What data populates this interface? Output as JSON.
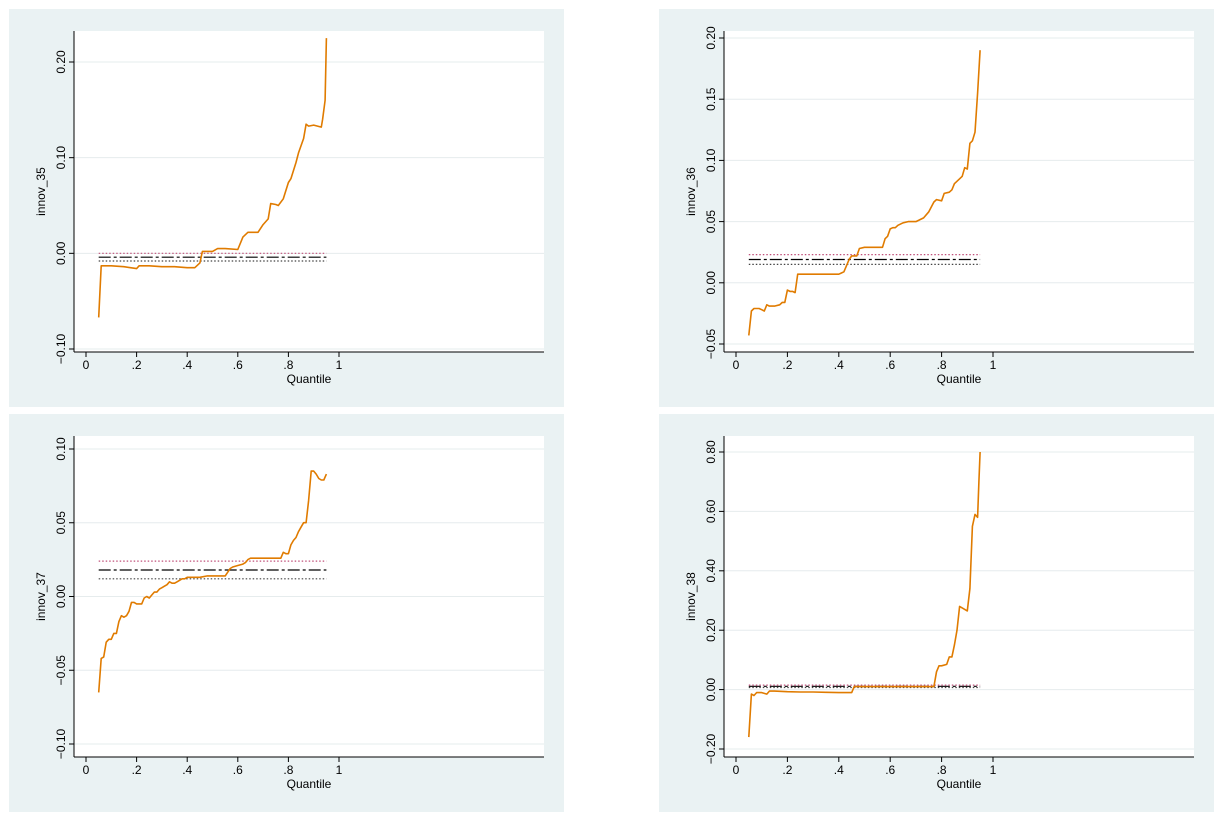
{
  "chart_data": [
    {
      "type": "line",
      "xlabel": "Quantile",
      "ylabel": "innov_35",
      "xlim": [
        0,
        1
      ],
      "ylim": [
        -0.1,
        0.2
      ],
      "xticks": [
        0,
        0.2,
        0.4,
        0.6,
        0.8,
        1
      ],
      "xtick_labels": [
        "0",
        ".2",
        ".4",
        ".6",
        ".8",
        "1"
      ],
      "yticks": [
        -0.1,
        0,
        0.1,
        0.2
      ],
      "ytick_labels": [
        "−0.10",
        "0.00",
        "0.10",
        "0.20"
      ],
      "grid": true,
      "series": [
        {
          "role": "quantile-curve",
          "color": "#e07b00",
          "x": [
            0.05,
            0.06,
            0.1,
            0.15,
            0.2,
            0.21,
            0.25,
            0.3,
            0.35,
            0.4,
            0.43,
            0.45,
            0.46,
            0.5,
            0.52,
            0.55,
            0.6,
            0.62,
            0.64,
            0.68,
            0.7,
            0.72,
            0.73,
            0.75,
            0.76,
            0.78,
            0.8,
            0.81,
            0.83,
            0.84,
            0.86,
            0.87,
            0.88,
            0.9,
            0.93,
            0.935,
            0.945,
            0.95
          ],
          "y": [
            -0.067,
            -0.013,
            -0.013,
            -0.014,
            -0.016,
            -0.013,
            -0.013,
            -0.014,
            -0.014,
            -0.015,
            -0.015,
            -0.01,
            0.002,
            0.002,
            0.005,
            0.005,
            0.004,
            0.017,
            0.022,
            0.022,
            0.03,
            0.036,
            0.052,
            0.051,
            0.05,
            0.057,
            0.074,
            0.078,
            0.095,
            0.105,
            0.12,
            0.135,
            0.133,
            0.134,
            0.132,
            0.14,
            0.16,
            0.225
          ]
        },
        {
          "role": "ols-estimate",
          "color": "#000000",
          "style": "long-dash",
          "x": [
            0.05,
            0.95
          ],
          "y": [
            -0.004,
            -0.004
          ]
        },
        {
          "role": "upper-ci",
          "color": "#c0507a",
          "style": "dotted",
          "x": [
            0.05,
            0.95
          ],
          "y": [
            0.0,
            0.0
          ]
        },
        {
          "role": "lower-ci",
          "color": "#444444",
          "style": "dotted",
          "x": [
            0.05,
            0.95
          ],
          "y": [
            -0.008,
            -0.008
          ]
        }
      ]
    },
    {
      "type": "line",
      "xlabel": "Quantile",
      "ylabel": "innov_36",
      "xlim": [
        0,
        1
      ],
      "ylim": [
        -0.05,
        0.2
      ],
      "xticks": [
        0,
        0.2,
        0.4,
        0.6,
        0.8,
        1
      ],
      "xtick_labels": [
        "0",
        ".2",
        ".4",
        ".6",
        ".8",
        "1"
      ],
      "yticks": [
        -0.05,
        0,
        0.05,
        0.1,
        0.15,
        0.2
      ],
      "ytick_labels": [
        "−0.05",
        "0.00",
        "0.05",
        "0.10",
        "0.15",
        "0.20"
      ],
      "grid": true,
      "series": [
        {
          "role": "quantile-curve",
          "color": "#e07b00",
          "x": [
            0.05,
            0.06,
            0.07,
            0.08,
            0.09,
            0.1,
            0.11,
            0.12,
            0.13,
            0.15,
            0.17,
            0.18,
            0.19,
            0.2,
            0.21,
            0.22,
            0.23,
            0.24,
            0.3,
            0.35,
            0.4,
            0.41,
            0.42,
            0.43,
            0.44,
            0.45,
            0.47,
            0.48,
            0.5,
            0.52,
            0.55,
            0.57,
            0.58,
            0.59,
            0.6,
            0.61,
            0.62,
            0.63,
            0.65,
            0.67,
            0.68,
            0.7,
            0.71,
            0.73,
            0.75,
            0.77,
            0.78,
            0.8,
            0.81,
            0.83,
            0.84,
            0.85,
            0.87,
            0.88,
            0.89,
            0.9,
            0.91,
            0.92,
            0.93,
            0.94,
            0.95
          ],
          "y": [
            -0.043,
            -0.023,
            -0.021,
            -0.021,
            -0.021,
            -0.022,
            -0.023,
            -0.018,
            -0.019,
            -0.019,
            -0.018,
            -0.016,
            -0.016,
            -0.006,
            -0.007,
            -0.007,
            -0.008,
            0.007,
            0.007,
            0.007,
            0.007,
            0.008,
            0.009,
            0.014,
            0.019,
            0.022,
            0.022,
            0.028,
            0.029,
            0.029,
            0.029,
            0.029,
            0.036,
            0.038,
            0.044,
            0.045,
            0.045,
            0.047,
            0.049,
            0.05,
            0.05,
            0.05,
            0.051,
            0.053,
            0.058,
            0.066,
            0.068,
            0.067,
            0.073,
            0.074,
            0.076,
            0.081,
            0.085,
            0.087,
            0.094,
            0.093,
            0.114,
            0.116,
            0.123,
            0.155,
            0.19
          ]
        },
        {
          "role": "ols-estimate",
          "color": "#000000",
          "style": "long-dash",
          "x": [
            0.05,
            0.95
          ],
          "y": [
            0.019,
            0.019
          ]
        },
        {
          "role": "upper-ci",
          "color": "#c0507a",
          "style": "dotted",
          "x": [
            0.05,
            0.95
          ],
          "y": [
            0.023,
            0.023
          ]
        },
        {
          "role": "lower-ci",
          "color": "#444444",
          "style": "dotted",
          "x": [
            0.05,
            0.95
          ],
          "y": [
            0.015,
            0.015
          ]
        }
      ]
    },
    {
      "type": "line",
      "xlabel": "Quantile",
      "ylabel": "innov_37",
      "xlim": [
        0,
        1
      ],
      "ylim": [
        -0.1,
        0.1
      ],
      "xticks": [
        0,
        0.2,
        0.4,
        0.6,
        0.8,
        1
      ],
      "xtick_labels": [
        "0",
        ".2",
        ".4",
        ".6",
        ".8",
        "1"
      ],
      "yticks": [
        -0.1,
        -0.05,
        0,
        0.05,
        0.1
      ],
      "ytick_labels": [
        "−0.10",
        "−0.05",
        "0.00",
        "0.05",
        "0.10"
      ],
      "grid": true,
      "series": [
        {
          "role": "quantile-curve",
          "color": "#e07b00",
          "x": [
            0.05,
            0.06,
            0.07,
            0.08,
            0.09,
            0.1,
            0.11,
            0.12,
            0.13,
            0.14,
            0.15,
            0.16,
            0.17,
            0.18,
            0.19,
            0.2,
            0.21,
            0.22,
            0.23,
            0.24,
            0.25,
            0.26,
            0.27,
            0.28,
            0.29,
            0.3,
            0.31,
            0.32,
            0.33,
            0.34,
            0.35,
            0.36,
            0.37,
            0.38,
            0.39,
            0.4,
            0.41,
            0.42,
            0.43,
            0.44,
            0.45,
            0.48,
            0.5,
            0.55,
            0.57,
            0.58,
            0.6,
            0.62,
            0.63,
            0.64,
            0.65,
            0.7,
            0.75,
            0.77,
            0.78,
            0.79,
            0.8,
            0.81,
            0.82,
            0.83,
            0.84,
            0.85,
            0.86,
            0.87,
            0.88,
            0.89,
            0.9,
            0.91,
            0.92,
            0.93,
            0.94,
            0.95
          ],
          "y": [
            -0.065,
            -0.042,
            -0.041,
            -0.031,
            -0.029,
            -0.029,
            -0.025,
            -0.025,
            -0.017,
            -0.013,
            -0.014,
            -0.013,
            -0.01,
            -0.004,
            -0.004,
            -0.005,
            -0.005,
            -0.005,
            -0.001,
            0.0,
            -0.001,
            0.001,
            0.003,
            0.003,
            0.005,
            0.006,
            0.007,
            0.008,
            0.01,
            0.009,
            0.009,
            0.01,
            0.011,
            0.012,
            0.012,
            0.013,
            0.013,
            0.013,
            0.013,
            0.013,
            0.013,
            0.014,
            0.014,
            0.014,
            0.019,
            0.02,
            0.021,
            0.022,
            0.023,
            0.025,
            0.026,
            0.026,
            0.026,
            0.026,
            0.03,
            0.029,
            0.029,
            0.035,
            0.038,
            0.04,
            0.044,
            0.047,
            0.05,
            0.05,
            0.065,
            0.085,
            0.085,
            0.083,
            0.08,
            0.079,
            0.079,
            0.083
          ]
        },
        {
          "role": "ols-estimate",
          "color": "#000000",
          "style": "long-dash",
          "x": [
            0.05,
            0.95
          ],
          "y": [
            0.018,
            0.018
          ]
        },
        {
          "role": "upper-ci",
          "color": "#c0507a",
          "style": "dotted",
          "x": [
            0.05,
            0.95
          ],
          "y": [
            0.024,
            0.024
          ]
        },
        {
          "role": "lower-ci",
          "color": "#444444",
          "style": "dotted",
          "x": [
            0.05,
            0.95
          ],
          "y": [
            0.012,
            0.012
          ]
        }
      ]
    },
    {
      "type": "line",
      "xlabel": "Quantile",
      "ylabel": "innov_38",
      "xlim": [
        0,
        1
      ],
      "ylim": [
        -0.2,
        0.8
      ],
      "xticks": [
        0,
        0.2,
        0.4,
        0.6,
        0.8,
        1
      ],
      "xtick_labels": [
        "0",
        ".2",
        ".4",
        ".6",
        ".8",
        "1"
      ],
      "yticks": [
        -0.2,
        0,
        0.2,
        0.4,
        0.6,
        0.8
      ],
      "ytick_labels": [
        "−0.20",
        "0.00",
        "0.20",
        "0.40",
        "0.60",
        "0.80"
      ],
      "grid": true,
      "series": [
        {
          "role": "quantile-curve",
          "color": "#e07b00",
          "x": [
            0.05,
            0.06,
            0.07,
            0.08,
            0.1,
            0.12,
            0.13,
            0.15,
            0.2,
            0.25,
            0.3,
            0.35,
            0.4,
            0.45,
            0.46,
            0.5,
            0.55,
            0.6,
            0.65,
            0.7,
            0.75,
            0.77,
            0.78,
            0.79,
            0.8,
            0.82,
            0.83,
            0.84,
            0.85,
            0.86,
            0.87,
            0.88,
            0.9,
            0.91,
            0.92,
            0.93,
            0.94,
            0.945,
            0.95
          ],
          "y": [
            -0.16,
            -0.015,
            -0.02,
            -0.01,
            -0.01,
            -0.015,
            -0.005,
            -0.005,
            -0.007,
            -0.008,
            -0.008,
            -0.009,
            -0.01,
            -0.01,
            0.01,
            0.01,
            0.01,
            0.01,
            0.01,
            0.01,
            0.01,
            0.01,
            0.06,
            0.08,
            0.08,
            0.085,
            0.11,
            0.11,
            0.15,
            0.2,
            0.28,
            0.275,
            0.265,
            0.34,
            0.55,
            0.59,
            0.58,
            0.7,
            0.8
          ]
        },
        {
          "role": "ols-estimate",
          "color": "#000000",
          "style": "long-dash",
          "x": [
            0.05,
            0.95
          ],
          "y": [
            0.011,
            0.011
          ]
        },
        {
          "role": "upper-ci",
          "color": "#c0507a",
          "style": "dotted",
          "x": [
            0.05,
            0.95
          ],
          "y": [
            0.015,
            0.015
          ]
        },
        {
          "role": "lower-ci",
          "color": "#444444",
          "style": "dotted",
          "x": [
            0.05,
            0.95
          ],
          "y": [
            0.007,
            0.007
          ]
        }
      ]
    }
  ]
}
